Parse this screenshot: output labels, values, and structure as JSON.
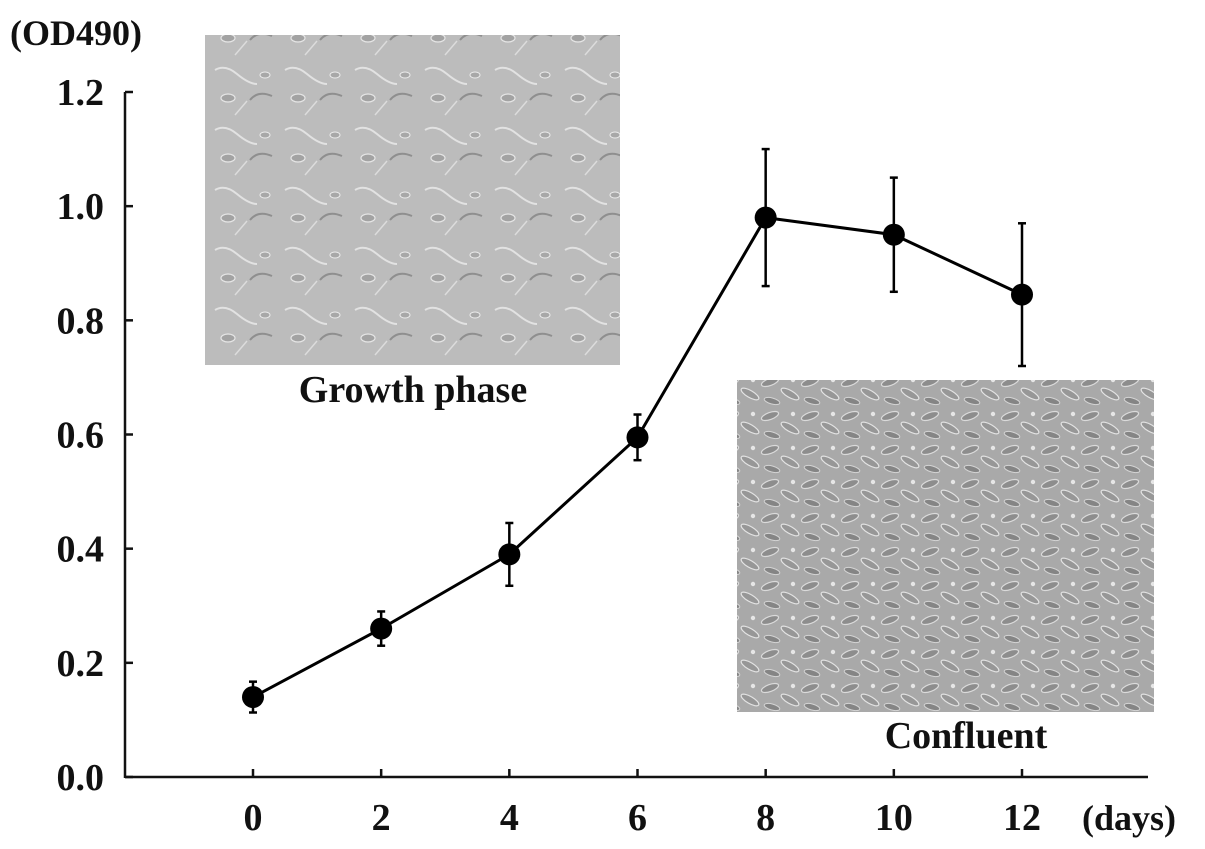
{
  "chart_data": {
    "type": "line",
    "ylabel": "(OD490)",
    "xlabel": "(days)",
    "x": [
      0,
      2,
      4,
      6,
      8,
      10,
      12
    ],
    "xticks": [
      "0",
      "2",
      "4",
      "6",
      "8",
      "10",
      "12"
    ],
    "yticks": [
      "0.0",
      "0.2",
      "0.4",
      "0.6",
      "0.8",
      "1.0",
      "1.2"
    ],
    "ylim": [
      0,
      1.2
    ],
    "xlim": [
      -2,
      14
    ],
    "grid": false,
    "series": [
      {
        "values": [
          0.14,
          0.26,
          0.39,
          0.595,
          0.98,
          0.95,
          0.845
        ],
        "error": [
          0.027,
          0.03,
          0.055,
          0.04,
          0.12,
          0.1,
          0.125
        ],
        "color": "#000000"
      }
    ],
    "annotations": [
      {
        "text": "Growth phase",
        "image": "micrograph-sparse-cells"
      },
      {
        "text": "Confluent",
        "image": "micrograph-dense-cells"
      }
    ]
  }
}
